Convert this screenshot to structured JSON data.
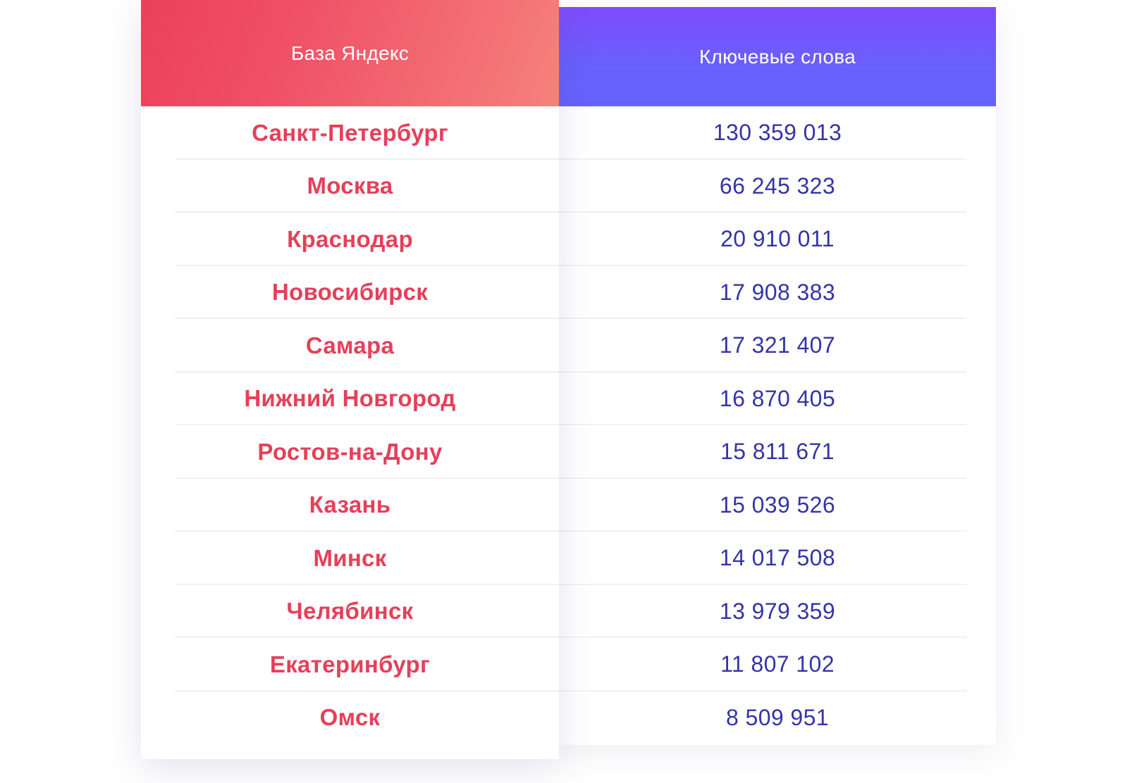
{
  "table": {
    "header_base": "База Яндекс",
    "header_keywords": "Ключевые слова",
    "rows": [
      {
        "city": "Санкт-Петербург",
        "keywords": "130 359 013"
      },
      {
        "city": "Москва",
        "keywords": "66 245 323"
      },
      {
        "city": "Краснодар",
        "keywords": "20 910 011"
      },
      {
        "city": "Новосибирск",
        "keywords": "17 908 383"
      },
      {
        "city": "Самара",
        "keywords": "17 321 407"
      },
      {
        "city": "Нижний Новгород",
        "keywords": "16 870 405"
      },
      {
        "city": "Ростов-на-Дону",
        "keywords": "15 811 671"
      },
      {
        "city": "Казань",
        "keywords": "15 039 526"
      },
      {
        "city": "Минск",
        "keywords": "14 017 508"
      },
      {
        "city": "Челябинск",
        "keywords": "13 979 359"
      },
      {
        "city": "Екатеринбург",
        "keywords": "11 807 102"
      },
      {
        "city": "Омск",
        "keywords": "8 509 951"
      }
    ]
  },
  "colors": {
    "city_text": "#e5405a",
    "count_text": "#3434a8",
    "header_base_gradient": [
      "#ec4059",
      "#f6817c"
    ],
    "header_keywords_gradient": [
      "#7e4cfb",
      "#6563ff"
    ],
    "divider": "#eff0f8"
  }
}
